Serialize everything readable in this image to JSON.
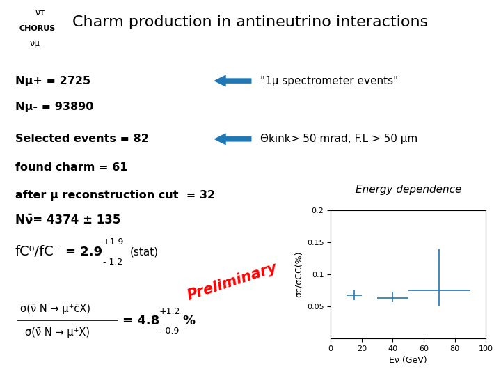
{
  "chart_data": {
    "type": "errorbar",
    "title": "Charm production in antineutrino interactions",
    "x_label": "Eν̄ (GeV)",
    "y_label": "σc/σCC(%)",
    "x": [
      15,
      40,
      70
    ],
    "values": [
      0.068,
      0.063,
      0.075
    ],
    "xerr": [
      5,
      10,
      20
    ],
    "yerr_lo": [
      0.008,
      0.006,
      0.025
    ],
    "yerr_hi": [
      0.008,
      0.01,
      0.065
    ],
    "marker": "none",
    "xlim": [
      0,
      100
    ],
    "ylim": [
      0.0,
      0.2
    ],
    "xticks": [
      0,
      20,
      40,
      60,
      80,
      100
    ],
    "yticks": [
      0.05,
      0.1,
      0.15,
      0.2
    ],
    "grid": false,
    "annotations": [
      "CHORUS",
      "ντ",
      "νμ",
      "Nμ+ = 2725",
      "Nμ- = 93890",
      "Selected events = 82",
      "found charm = 61",
      "after μ reconstruction cut  = 32",
      "\"1μ spectrometer events\"",
      "Θkink> 50 mrad, F.L > 50 μm",
      "Nν̄= 4374 ± 135",
      "fC⁰/fC⁻",
      "= 2.9",
      "+1.9",
      "- 1.2",
      "(stat)",
      "Preliminary",
      "σ(ν̄ N → μ⁺c̄X)",
      "σ(ν̄ N → μ⁺X)",
      "= 4.8",
      "+1.2",
      "- 0.9",
      "%",
      "Energy dependence"
    ]
  }
}
